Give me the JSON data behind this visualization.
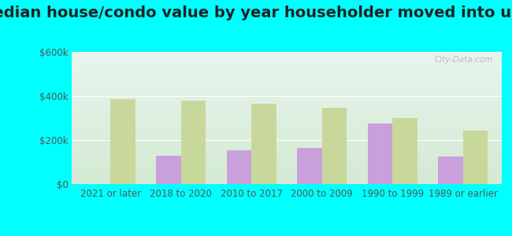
{
  "title": "Median house/condo value by year householder moved into unit",
  "categories": [
    "2021 or later",
    "2018 to 2020",
    "2010 to 2017",
    "2000 to 2009",
    "1990 to 1999",
    "1989 or earlier"
  ],
  "jarratt": [
    0,
    130000,
    155000,
    165000,
    275000,
    125000
  ],
  "virginia": [
    385000,
    380000,
    365000,
    345000,
    300000,
    243000
  ],
  "jarratt_color": "#c9a0dc",
  "virginia_color": "#c8d89a",
  "bar_width": 0.35,
  "ylim": [
    0,
    600000
  ],
  "yticks": [
    0,
    200000,
    400000,
    600000
  ],
  "ytick_labels": [
    "$0",
    "$200k",
    "$400k",
    "$600k"
  ],
  "background_color": "#00ffff",
  "plot_bg_top": "#e8f5ee",
  "plot_bg_bottom": "#d4ead4",
  "title_fontsize": 14,
  "tick_fontsize": 8.5,
  "legend_fontsize": 10,
  "watermark": "City-Data.com"
}
